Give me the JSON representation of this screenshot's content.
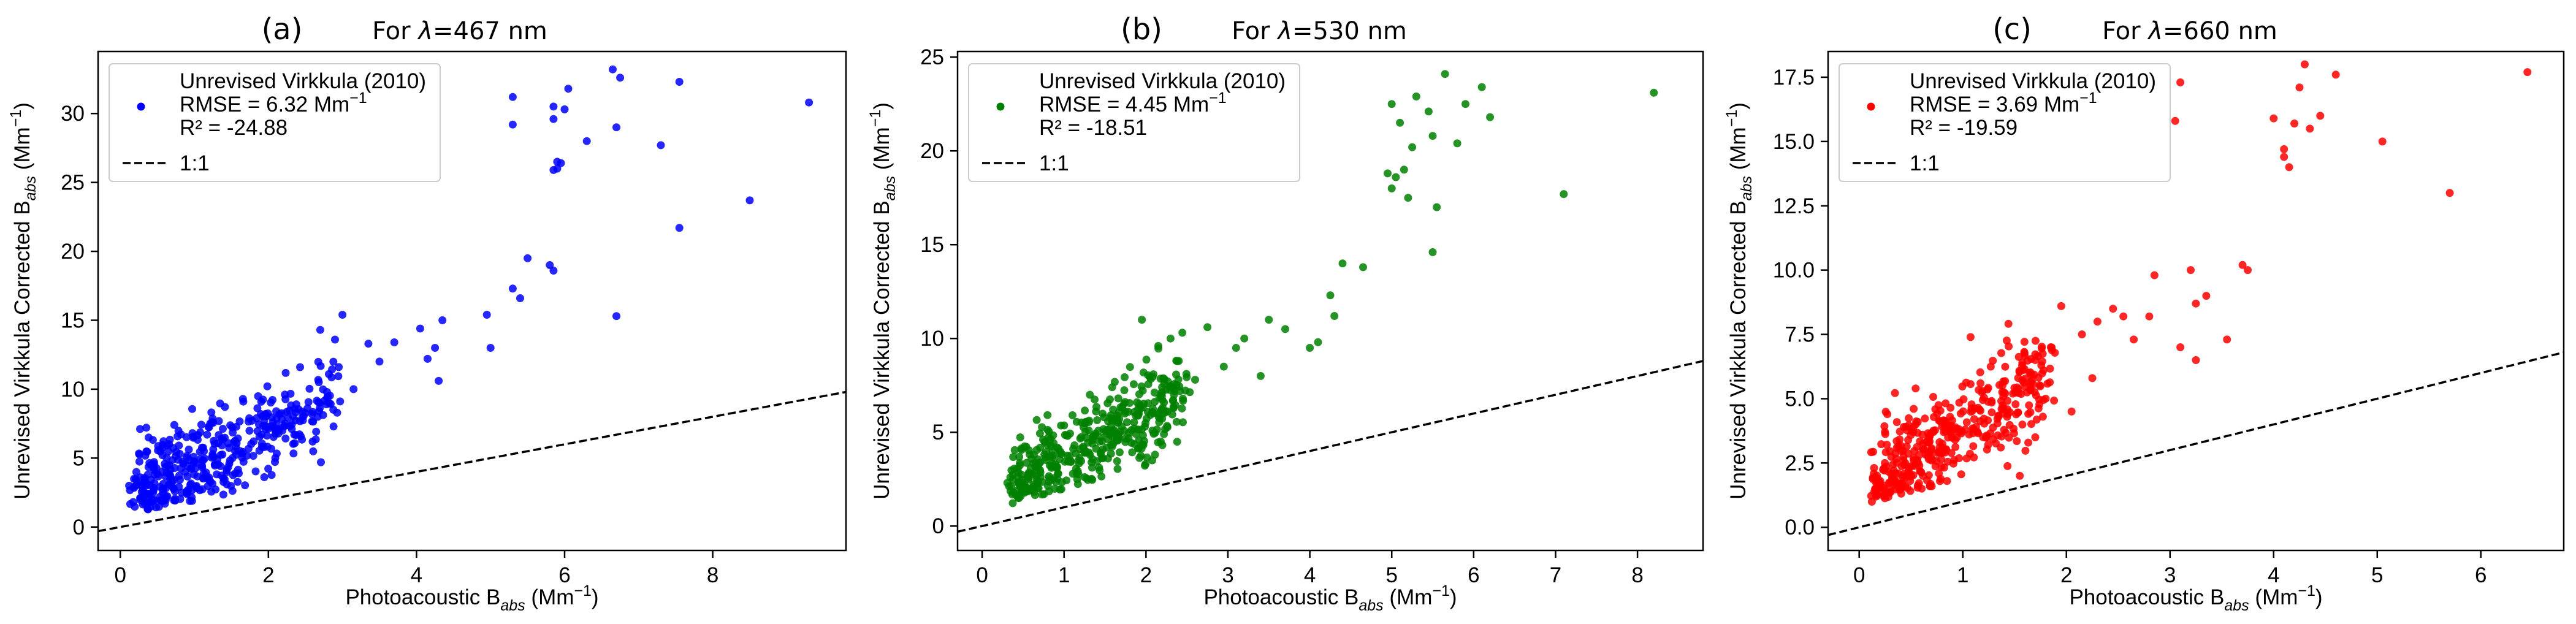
{
  "chart_data": [
    {
      "type": "scatter",
      "panel_label": "(a)",
      "title": "For λ=467 nm",
      "xlabel": "Photoacoustic B_abs (Mm⁻¹)",
      "ylabel": "Unrevised Virkkula Corrected B_abs (Mm⁻¹)",
      "xlim": [
        -0.3,
        9.8
      ],
      "ylim": [
        -1.7,
        34.5
      ],
      "xticks": [
        "0",
        "2",
        "4",
        "6",
        "8"
      ],
      "yticks": [
        "0",
        "5",
        "10",
        "15",
        "20",
        "25",
        "30"
      ],
      "color": "#0000ff",
      "legend": {
        "position": "upper-left",
        "series_label": "Unrevised Virkkula (2010)",
        "rmse": "RMSE = 6.32 Mm⁻¹",
        "r2": "R² = -24.88",
        "line_label": "1:1"
      },
      "outliers": [
        [
          9.3,
          30.8
        ],
        [
          8.5,
          23.7
        ],
        [
          7.55,
          21.7
        ],
        [
          7.55,
          32.3
        ],
        [
          7.3,
          27.7
        ],
        [
          6.75,
          32.6
        ],
        [
          6.65,
          33.2
        ],
        [
          6.7,
          29.0
        ],
        [
          6.7,
          15.3
        ],
        [
          6.3,
          28.0
        ],
        [
          6.0,
          30.3
        ],
        [
          6.05,
          31.8
        ],
        [
          5.85,
          29.6
        ],
        [
          5.95,
          26.4
        ],
        [
          5.9,
          26.0
        ],
        [
          5.9,
          26.5
        ],
        [
          5.85,
          30.5
        ],
        [
          5.3,
          29.2
        ],
        [
          5.3,
          31.2
        ],
        [
          5.85,
          25.9
        ],
        [
          5.85,
          18.6
        ],
        [
          5.8,
          19.0
        ],
        [
          5.3,
          17.3
        ],
        [
          5.4,
          16.6
        ],
        [
          5.5,
          19.5
        ],
        [
          4.95,
          15.4
        ],
        [
          5.0,
          13.0
        ],
        [
          4.35,
          15.0
        ],
        [
          4.3,
          10.6
        ],
        [
          4.25,
          13.0
        ],
        [
          4.15,
          12.2
        ],
        [
          4.05,
          14.4
        ],
        [
          3.7,
          13.4
        ],
        [
          3.5,
          12.0
        ],
        [
          3.35,
          13.3
        ],
        [
          3.0,
          15.4
        ],
        [
          2.7,
          14.3
        ],
        [
          2.9,
          13.6
        ],
        [
          2.95,
          11.6
        ],
        [
          3.15,
          10.0
        ]
      ],
      "cluster": {
        "x_range": [
          0.1,
          3.0
        ],
        "slope": 2.4,
        "intercept": 2.2,
        "spread": 1.8,
        "count": 420,
        "seed": 4671
      }
    },
    {
      "type": "scatter",
      "panel_label": "(b)",
      "title": "For λ=530 nm",
      "xlabel": "Photoacoustic B_abs (Mm⁻¹)",
      "ylabel": "Unrevised Virkkula Corrected B_abs (Mm⁻¹)",
      "xlim": [
        -0.3,
        8.8
      ],
      "ylim": [
        -1.3,
        25.3
      ],
      "xticks": [
        "0",
        "1",
        "2",
        "3",
        "4",
        "5",
        "6",
        "7",
        "8"
      ],
      "yticks": [
        "0",
        "5",
        "10",
        "15",
        "20",
        "25"
      ],
      "color": "#008000",
      "legend": {
        "position": "upper-left",
        "series_label": "Unrevised Virkkula (2010)",
        "rmse": "RMSE = 4.45 Mm⁻¹",
        "r2": "R² = -18.51",
        "line_label": "1:1"
      },
      "outliers": [
        [
          8.2,
          23.1
        ],
        [
          7.1,
          17.7
        ],
        [
          6.1,
          23.4
        ],
        [
          6.2,
          21.8
        ],
        [
          5.9,
          22.5
        ],
        [
          5.8,
          20.4
        ],
        [
          5.65,
          24.1
        ],
        [
          5.45,
          22.1
        ],
        [
          5.5,
          20.8
        ],
        [
          5.25,
          20.2
        ],
        [
          5.3,
          22.9
        ],
        [
          5.1,
          21.5
        ],
        [
          5.05,
          18.6
        ],
        [
          5.2,
          17.5
        ],
        [
          5.15,
          19.0
        ],
        [
          5.0,
          18.0
        ],
        [
          5.5,
          14.6
        ],
        [
          5.55,
          17.0
        ],
        [
          4.95,
          18.8
        ],
        [
          5.0,
          22.5
        ],
        [
          4.65,
          13.8
        ],
        [
          4.4,
          14.0
        ],
        [
          4.25,
          12.3
        ],
        [
          4.3,
          11.2
        ],
        [
          4.1,
          9.8
        ],
        [
          4.0,
          9.5
        ],
        [
          3.7,
          10.5
        ],
        [
          3.5,
          11.0
        ],
        [
          3.4,
          8.0
        ],
        [
          3.2,
          10.0
        ],
        [
          3.1,
          9.5
        ],
        [
          2.95,
          8.5
        ],
        [
          2.75,
          10.6
        ],
        [
          2.6,
          7.8
        ],
        [
          2.3,
          10.0
        ],
        [
          2.4,
          8.8
        ],
        [
          1.95,
          11.0
        ],
        [
          2.15,
          9.6
        ]
      ],
      "cluster": {
        "x_range": [
          0.3,
          2.6
        ],
        "slope": 2.2,
        "intercept": 1.5,
        "spread": 1.3,
        "count": 420,
        "seed": 5302
      }
    },
    {
      "type": "scatter",
      "panel_label": "(c)",
      "title": "For λ=660 nm",
      "xlabel": "Photoacoustic B_abs (Mm⁻¹)",
      "ylabel": "Unrevised Virkkula Corrected B_abs (Mm⁻¹)",
      "xlim": [
        -0.3,
        6.8
      ],
      "ylim": [
        -0.9,
        18.5
      ],
      "xticks": [
        "0",
        "1",
        "2",
        "3",
        "4",
        "5",
        "6"
      ],
      "yticks": [
        "0.0",
        "2.5",
        "5.0",
        "7.5",
        "10.0",
        "12.5",
        "15.0",
        "17.5"
      ],
      "color": "#ff0000",
      "legend": {
        "position": "upper-left",
        "series_label": "Unrevised Virkkula (2010)",
        "rmse": "RMSE = 3.69 Mm⁻¹",
        "r2": "R² = -19.59",
        "line_label": "1:1"
      },
      "outliers": [
        [
          6.45,
          17.7
        ],
        [
          5.7,
          13.0
        ],
        [
          5.05,
          15.0
        ],
        [
          4.6,
          17.6
        ],
        [
          4.45,
          16.0
        ],
        [
          4.3,
          18.0
        ],
        [
          4.25,
          17.1
        ],
        [
          4.35,
          15.5
        ],
        [
          4.2,
          15.7
        ],
        [
          4.1,
          14.4
        ],
        [
          4.15,
          14.0
        ],
        [
          4.0,
          15.9
        ],
        [
          4.1,
          14.7
        ],
        [
          3.1,
          17.3
        ],
        [
          3.05,
          15.8
        ],
        [
          3.75,
          10.0
        ],
        [
          3.7,
          10.2
        ],
        [
          3.55,
          7.3
        ],
        [
          3.35,
          9.0
        ],
        [
          3.25,
          8.7
        ],
        [
          3.1,
          7.0
        ],
        [
          3.2,
          10.0
        ],
        [
          3.25,
          6.5
        ],
        [
          2.85,
          9.8
        ],
        [
          2.8,
          8.2
        ],
        [
          2.65,
          7.3
        ],
        [
          2.55,
          8.2
        ],
        [
          2.45,
          8.5
        ],
        [
          2.3,
          8.0
        ],
        [
          2.15,
          7.5
        ],
        [
          2.25,
          5.8
        ],
        [
          1.95,
          8.6
        ],
        [
          1.85,
          7.0
        ],
        [
          1.7,
          6.5
        ],
        [
          1.8,
          5.0
        ],
        [
          1.55,
          2.0
        ],
        [
          1.7,
          3.5
        ],
        [
          2.05,
          4.5
        ]
      ],
      "cluster": {
        "x_range": [
          0.1,
          1.9
        ],
        "slope": 2.6,
        "intercept": 1.3,
        "spread": 1.1,
        "count": 420,
        "seed": 6603
      }
    }
  ]
}
